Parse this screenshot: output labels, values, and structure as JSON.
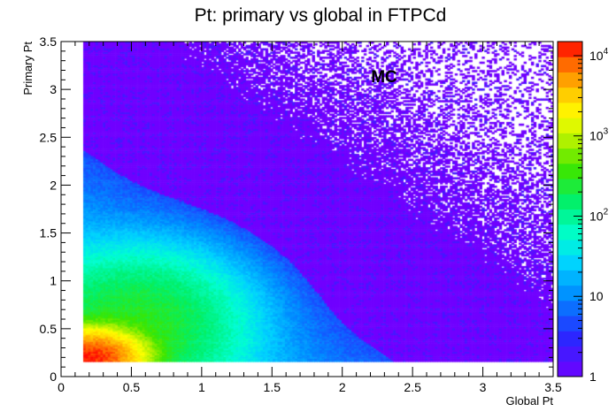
{
  "chart_data": {
    "type": "heatmap",
    "title": "Pt: primary vs global in FTPCd",
    "xlabel": "Global Pt",
    "ylabel": "Primary Pt",
    "xlim": [
      0,
      3.5
    ],
    "ylim": [
      0,
      3.5
    ],
    "x_ticks": [
      "0",
      "0.5",
      "1",
      "1.5",
      "2",
      "2.5",
      "3",
      "3.5"
    ],
    "x_tick_values": [
      0,
      0.5,
      1,
      1.5,
      2,
      2.5,
      3,
      3.5
    ],
    "y_ticks": [
      "0",
      "0.5",
      "1",
      "1.5",
      "2",
      "2.5",
      "3",
      "3.5"
    ],
    "y_tick_values": [
      0,
      0.5,
      1,
      1.5,
      2,
      2.5,
      3,
      3.5
    ],
    "z_scale": "log",
    "zlim": [
      1,
      15000
    ],
    "colorbar_ticks": [
      {
        "value": 1,
        "base": "1",
        "exp": ""
      },
      {
        "value": 10,
        "base": "10",
        "exp": ""
      },
      {
        "value": 100,
        "base": "10",
        "exp": "2"
      },
      {
        "value": 1000,
        "base": "10",
        "exp": "3"
      },
      {
        "value": 10000,
        "base": "10",
        "exp": "4"
      }
    ],
    "annotation": "MC",
    "data_region": {
      "x_min": 0.15,
      "y_min": 0.15
    },
    "peak": {
      "x": 0.2,
      "y": 0.2,
      "count": 12000
    },
    "grid": false,
    "legend": "none"
  }
}
